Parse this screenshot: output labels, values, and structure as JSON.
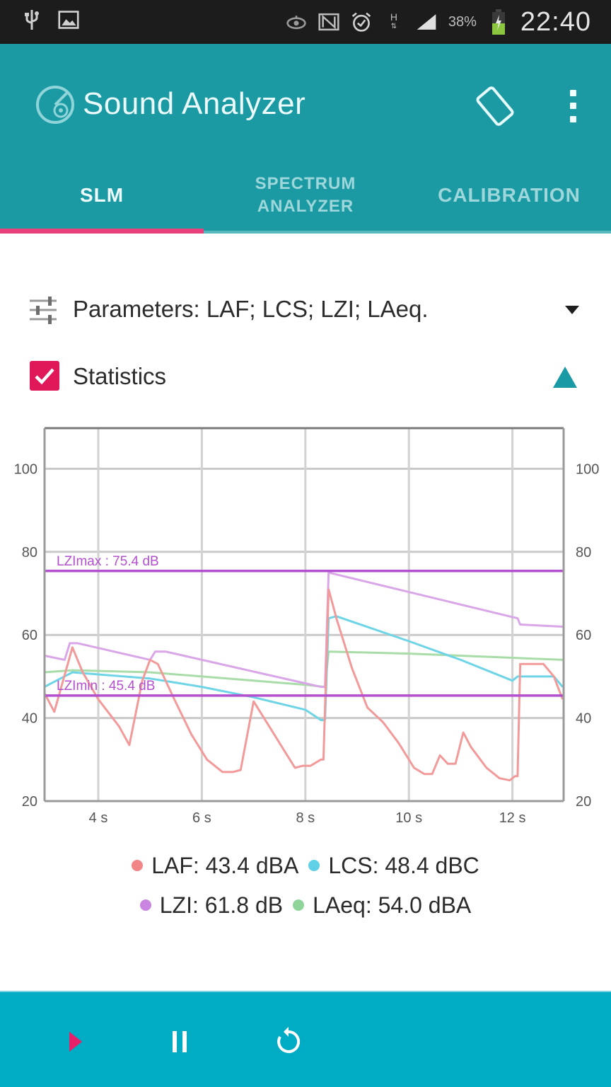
{
  "status_bar": {
    "left_icons": [
      "usb-icon",
      "image-icon"
    ],
    "right_icons": [
      "eye-icon",
      "nfc-icon",
      "alarm-icon",
      "hspa-icon",
      "signal-icon",
      "battery-charging-icon"
    ],
    "network_type": "H",
    "battery_percent": "38%",
    "time": "22:40"
  },
  "app_bar": {
    "title": "Sound Analyzer",
    "logo_icon": "sound-analyzer-logo-icon",
    "actions": [
      {
        "name": "rotate-screen-button",
        "icon": "screen-rotation-icon"
      },
      {
        "name": "overflow-menu-button",
        "icon": "more-vert-icon"
      }
    ],
    "colors": {
      "primary": "#1c9aa3",
      "accent": "#e8407a"
    }
  },
  "tabs": [
    {
      "label": "SLM",
      "active": true
    },
    {
      "label_line1": "SPECTRUM",
      "label_line2": "ANALYZER",
      "active": false
    },
    {
      "label": "CALIBRATION",
      "active": false
    }
  ],
  "parameters": {
    "label": "Parameters: LAF; LCS; LZI; LAeq.",
    "icon": "tune-sliders-icon",
    "dropdown_icon": "arrow-drop-down-icon"
  },
  "statistics": {
    "label": "Statistics",
    "checked": true,
    "collapse_icon": "triangle-up-icon"
  },
  "chart_data": {
    "type": "line",
    "title": "",
    "xlabel": "",
    "ylabel": "",
    "xlim": [
      2.96,
      13.0
    ],
    "ylim": [
      20,
      110
    ],
    "x_ticks": [
      4,
      6,
      8,
      10,
      12
    ],
    "x_tick_labels": [
      "4 s",
      "6 s",
      "8 s",
      "10 s",
      "12 s"
    ],
    "y_ticks": [
      20,
      40,
      60,
      80,
      100
    ],
    "y_tick_labels": [
      "20",
      "40",
      "60",
      "80",
      "100"
    ],
    "grid": true,
    "legend_position": "bottom",
    "annotations": [
      {
        "label": "LZImax : 75.4 dB",
        "y": 75.4,
        "color": "#b44fd0"
      },
      {
        "label": "LZImin : 45.4 dB",
        "y": 45.4,
        "color": "#b44fd0"
      }
    ],
    "series": [
      {
        "name": "LAF",
        "color": "#f29a9a",
        "x": [
          2.96,
          3.15,
          3.5,
          3.7,
          4.0,
          4.4,
          4.6,
          4.85,
          5.0,
          5.15,
          5.45,
          5.8,
          6.1,
          6.4,
          6.6,
          6.75,
          7.0,
          7.3,
          7.6,
          7.8,
          7.95,
          8.1,
          8.3,
          8.35,
          8.45,
          8.6,
          8.9,
          9.2,
          9.5,
          9.8,
          10.1,
          10.3,
          10.45,
          10.6,
          10.75,
          10.9,
          11.05,
          11.2,
          11.5,
          11.75,
          11.95,
          12.05,
          12.1,
          12.15,
          12.6,
          12.8,
          12.97
        ],
        "values": [
          46.0,
          41.5,
          57.0,
          51.0,
          44.5,
          38.0,
          33.5,
          49.0,
          54.0,
          53.0,
          45.0,
          36.0,
          30.0,
          27.0,
          27.0,
          27.5,
          44.0,
          38.0,
          32.0,
          28.0,
          28.5,
          28.5,
          30.0,
          30.0,
          71.0,
          64.0,
          52.0,
          42.5,
          39.0,
          34.0,
          28.0,
          26.5,
          26.5,
          31.0,
          29.0,
          29.0,
          36.5,
          33.0,
          28.0,
          25.5,
          25.0,
          26.0,
          26.0,
          53.0,
          53.0,
          50.0,
          44.5
        ]
      },
      {
        "name": "LCS",
        "color": "#6fd4e6",
        "x": [
          2.96,
          3.5,
          4.0,
          5.0,
          6.0,
          7.0,
          8.0,
          8.3,
          8.38,
          8.45,
          8.6,
          10.0,
          11.0,
          12.0,
          12.1,
          12.8,
          12.97
        ],
        "values": [
          47.5,
          51.0,
          50.5,
          49.5,
          47.5,
          45.0,
          42.0,
          39.5,
          39.5,
          64.0,
          64.5,
          58.5,
          54.0,
          49.0,
          50.0,
          50.0,
          47.5
        ]
      },
      {
        "name": "LZI",
        "color": "#d9a6e8",
        "x": [
          2.96,
          3.35,
          3.45,
          3.6,
          5.0,
          5.1,
          5.3,
          8.3,
          8.38,
          8.45,
          12.1,
          12.15,
          12.97
        ],
        "values": [
          55.0,
          54.0,
          58.0,
          58.0,
          54.0,
          56.0,
          56.0,
          47.5,
          47.5,
          75.0,
          64.0,
          62.5,
          62.0
        ]
      },
      {
        "name": "LAeq",
        "color": "#a8dca8",
        "x": [
          2.96,
          3.5,
          5.0,
          6.0,
          7.0,
          8.0,
          8.38,
          8.45,
          10.0,
          12.0,
          12.97
        ],
        "values": [
          51.0,
          51.5,
          51.0,
          50.0,
          49.0,
          48.0,
          47.5,
          56.0,
          55.5,
          54.5,
          54.0
        ]
      }
    ],
    "readouts": [
      {
        "name": "LAF",
        "value": "43.4",
        "unit": "dBA",
        "color": "#f28686"
      },
      {
        "name": "LCS",
        "value": "48.4",
        "unit": "dBC",
        "color": "#5fd0e6"
      },
      {
        "name": "LZI",
        "value": "61.8",
        "unit": "dB",
        "color": "#c985e0"
      },
      {
        "name": "LAeq",
        "value": "54.0",
        "unit": "dBA",
        "color": "#8fd49a"
      }
    ]
  },
  "legend": {
    "row1": [
      {
        "text": "LAF: 43.4 dBA",
        "color": "#f28686"
      },
      {
        "text": "LCS: 48.4 dBC",
        "color": "#5fd0e6"
      }
    ],
    "row2": [
      {
        "text": "LZI: 61.8 dB",
        "color": "#c985e0"
      },
      {
        "text": "LAeq: 54.0 dBA",
        "color": "#8fd49a"
      }
    ]
  },
  "controls": [
    {
      "name": "play-button",
      "icon": "play-icon",
      "color": "#e8206a"
    },
    {
      "name": "pause-button",
      "icon": "pause-icon",
      "color": "#ffffff"
    },
    {
      "name": "reset-button",
      "icon": "replay-icon",
      "color": "#ffffff"
    }
  ]
}
